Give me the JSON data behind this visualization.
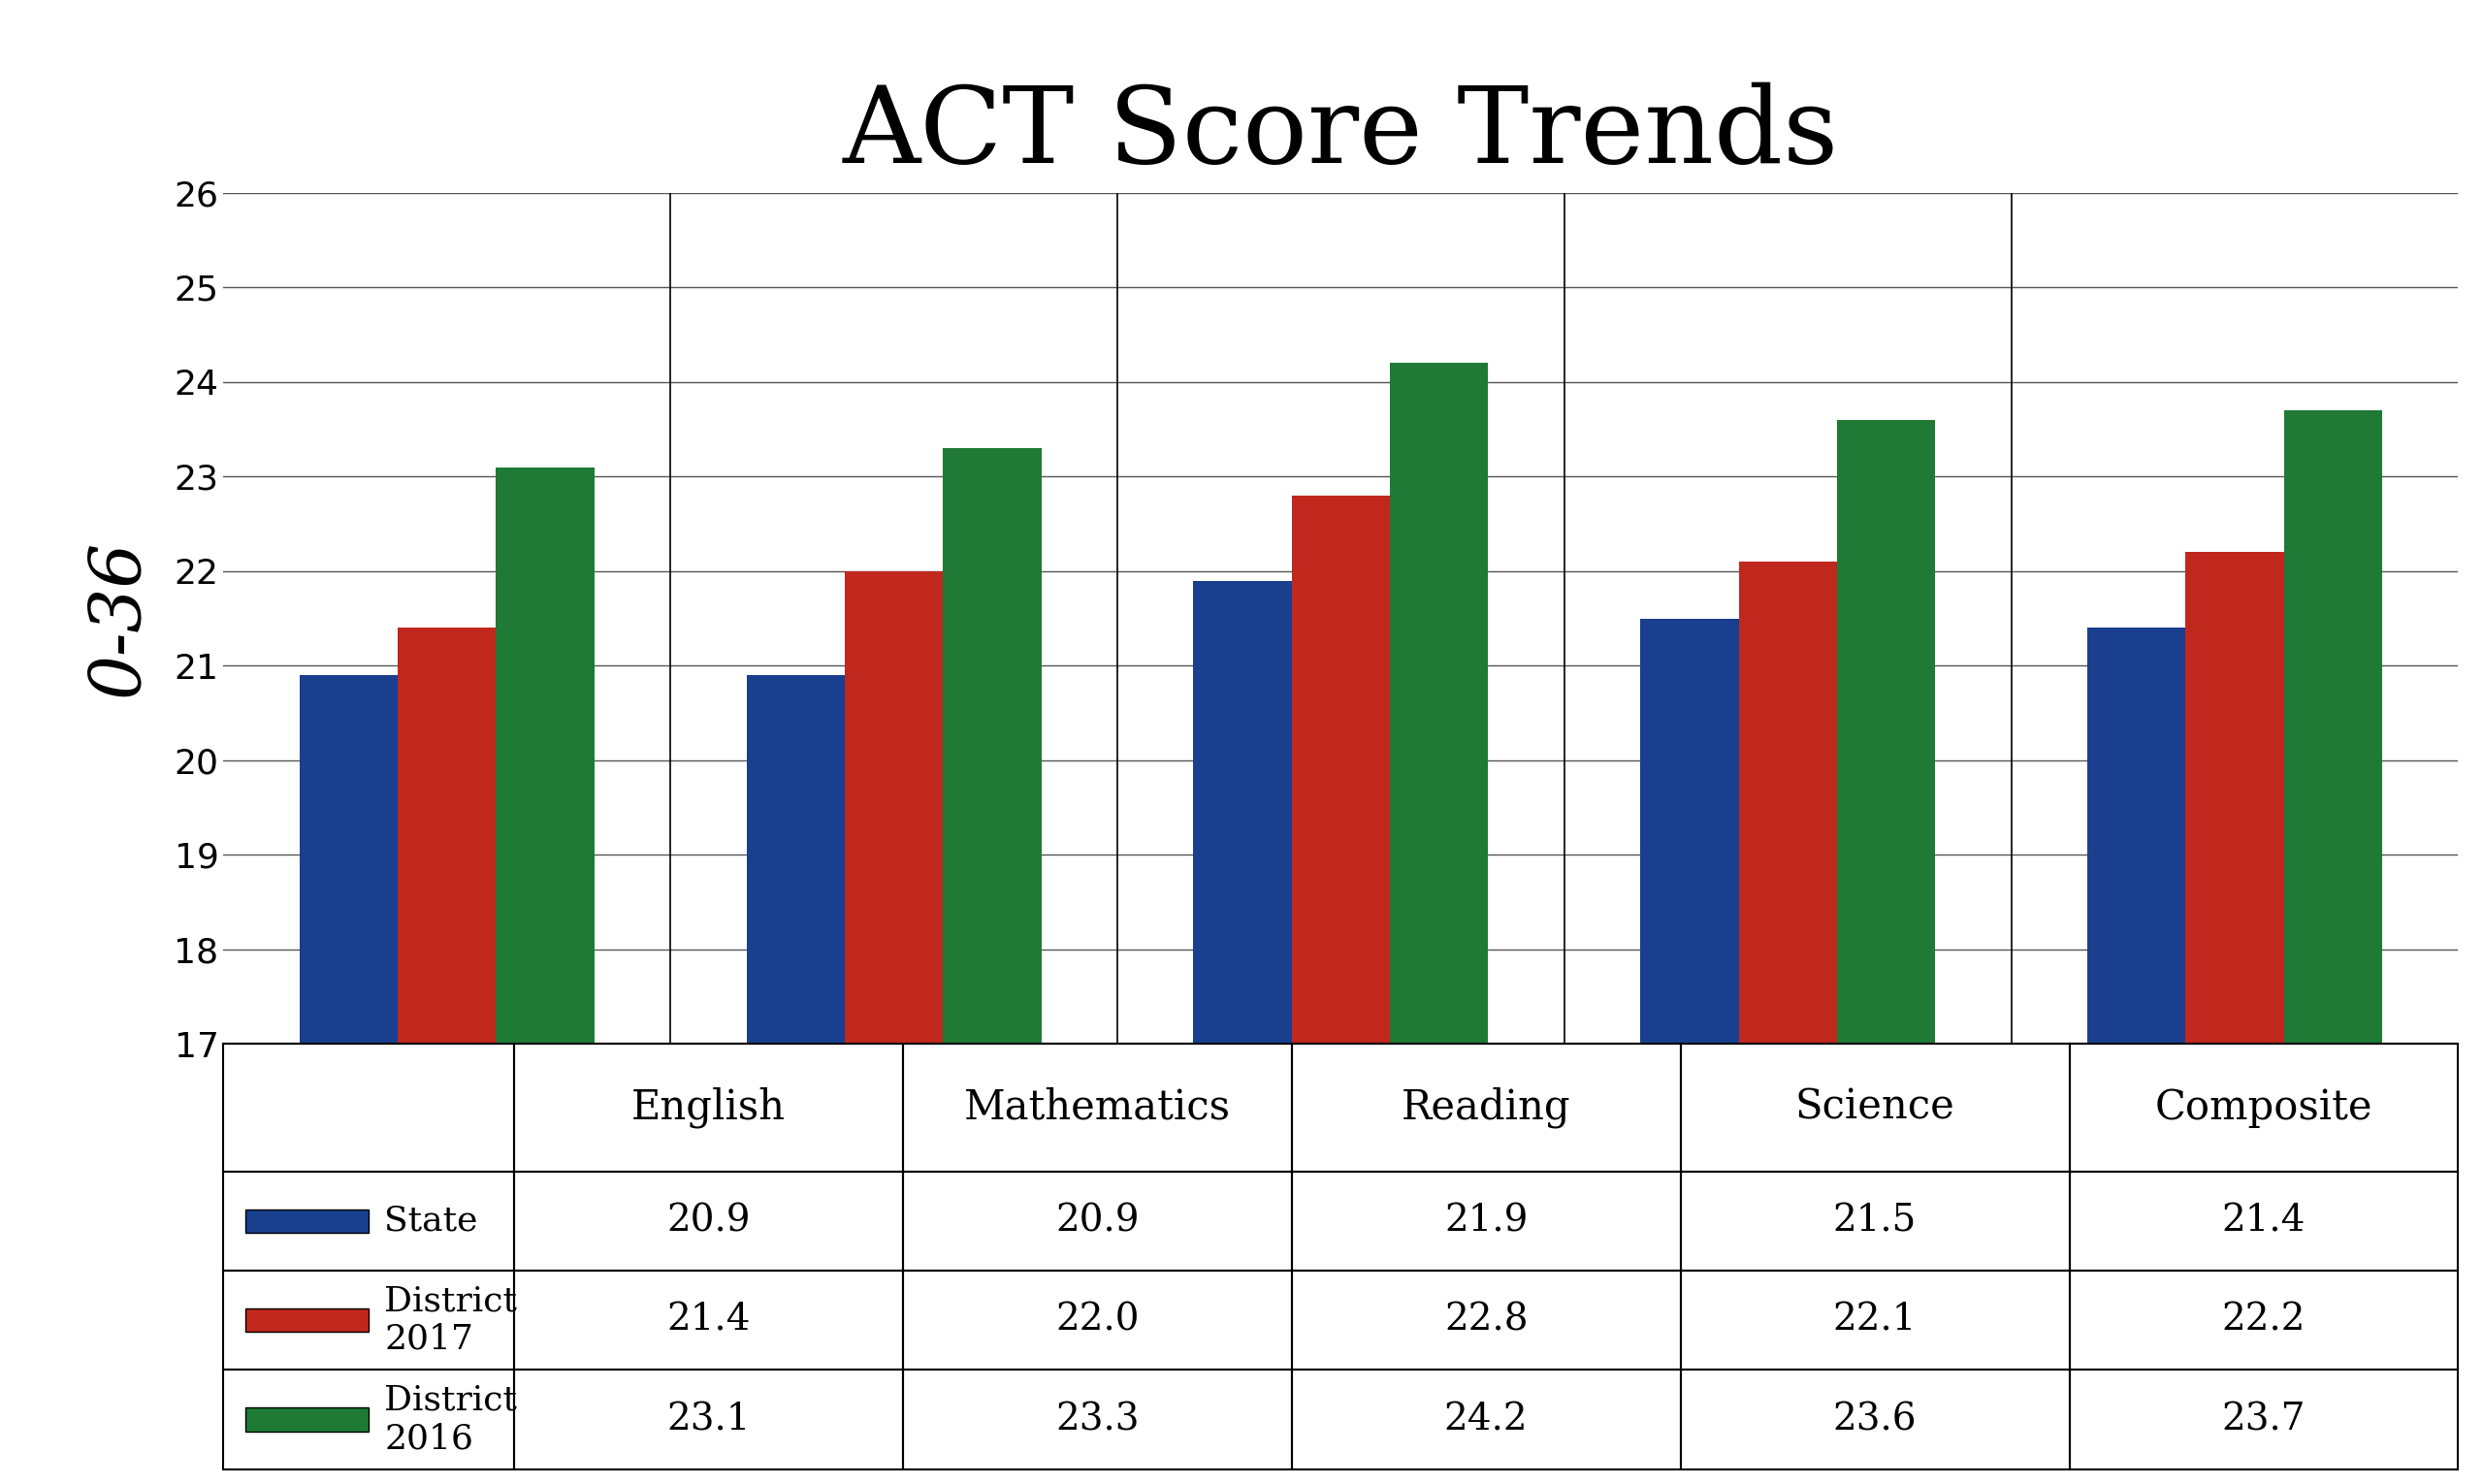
{
  "title": "ACT Score Trends",
  "ylabel": "0-36",
  "categories": [
    "English",
    "Mathematics",
    "Reading",
    "Science",
    "Composite"
  ],
  "series": [
    {
      "label": "State",
      "color": "#1a3f8f",
      "values": [
        20.9,
        20.9,
        21.9,
        21.5,
        21.4
      ]
    },
    {
      "label": "District\n2017",
      "color": "#c0281e",
      "values": [
        21.4,
        22.0,
        22.8,
        22.1,
        22.2
      ]
    },
    {
      "label": "District\n2016",
      "color": "#1e7a34",
      "values": [
        23.1,
        23.3,
        24.2,
        23.6,
        23.7
      ]
    }
  ],
  "ylim": [
    17,
    26
  ],
  "yticks": [
    17,
    18,
    19,
    20,
    21,
    22,
    23,
    24,
    25,
    26
  ],
  "background_color": "#ffffff",
  "title_fontsize": 80,
  "ylabel_fontsize": 52,
  "tick_fontsize": 26,
  "cat_fontsize": 30,
  "table_label_fontsize": 26,
  "table_data_fontsize": 28,
  "bar_width": 0.22,
  "grid_color": "#555555",
  "spine_color": "#000000"
}
